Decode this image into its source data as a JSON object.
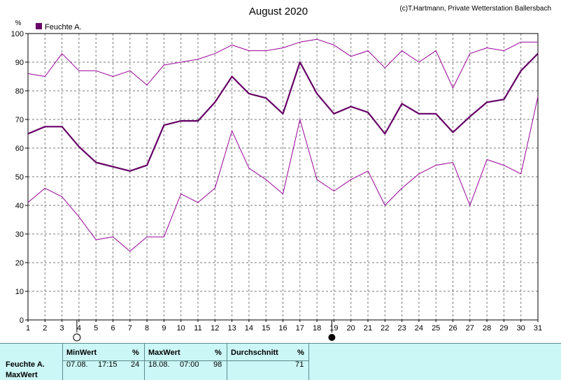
{
  "chart_data": {
    "type": "line",
    "title": "August 2020",
    "copyright": "(c)T.Hartmann, Private Wetterstation Ballersbach",
    "ylabel": "%",
    "ylim": [
      0,
      100
    ],
    "yticks": [
      0,
      10,
      20,
      30,
      40,
      50,
      60,
      70,
      80,
      90,
      100
    ],
    "x": [
      1,
      2,
      3,
      4,
      5,
      6,
      7,
      8,
      9,
      10,
      11,
      12,
      13,
      14,
      15,
      16,
      17,
      18,
      19,
      20,
      21,
      22,
      23,
      24,
      25,
      26,
      27,
      28,
      29,
      30,
      31
    ],
    "xlim": [
      1,
      31
    ],
    "grid": true,
    "legend": {
      "position": "top-left",
      "entries": [
        {
          "label": "Feuchte A.",
          "color": "#660066"
        }
      ]
    },
    "series": [
      {
        "name": "Feuchte A.",
        "role": "mean",
        "color": "#660066",
        "values": [
          65,
          67.5,
          67.5,
          60.5,
          55,
          53.5,
          52,
          54,
          68,
          69.5,
          69.5,
          76,
          85,
          79,
          77.5,
          72,
          90,
          79,
          72,
          74.5,
          72.5,
          65,
          75.5,
          72,
          72,
          65.5,
          71,
          76,
          77,
          87,
          93
        ]
      },
      {
        "role": "max",
        "color": "#990099",
        "values": [
          86,
          85,
          93,
          87,
          87,
          85,
          87,
          82,
          89,
          90,
          91,
          93,
          96,
          94,
          94,
          95,
          97,
          98,
          96,
          92,
          94,
          88,
          94,
          90,
          94,
          81,
          93,
          95,
          94,
          97,
          97
        ]
      },
      {
        "role": "min",
        "color": "#990099",
        "values": [
          41,
          46,
          43,
          36,
          28,
          29,
          24,
          29,
          29,
          44,
          41,
          46,
          66,
          53,
          49,
          44,
          70,
          49,
          45,
          49,
          52,
          40,
          46,
          51,
          54,
          55,
          40,
          56,
          54,
          51,
          78
        ]
      }
    ],
    "moon_phases": [
      {
        "day": 4,
        "phase": "full"
      },
      {
        "day": 19,
        "phase": "new"
      }
    ]
  },
  "stats": {
    "row_label": "Feuchte A.",
    "row_type": "MaxWert",
    "min": {
      "label": "MinWert",
      "unit": "%",
      "date": "07.08.",
      "time": "17:15",
      "value": "24"
    },
    "max": {
      "label": "MaxWert",
      "unit": "%",
      "date": "18.08.",
      "time": "07:00",
      "value": "98"
    },
    "avg": {
      "label": "Durchschnitt",
      "unit": "%",
      "value": "71"
    }
  }
}
